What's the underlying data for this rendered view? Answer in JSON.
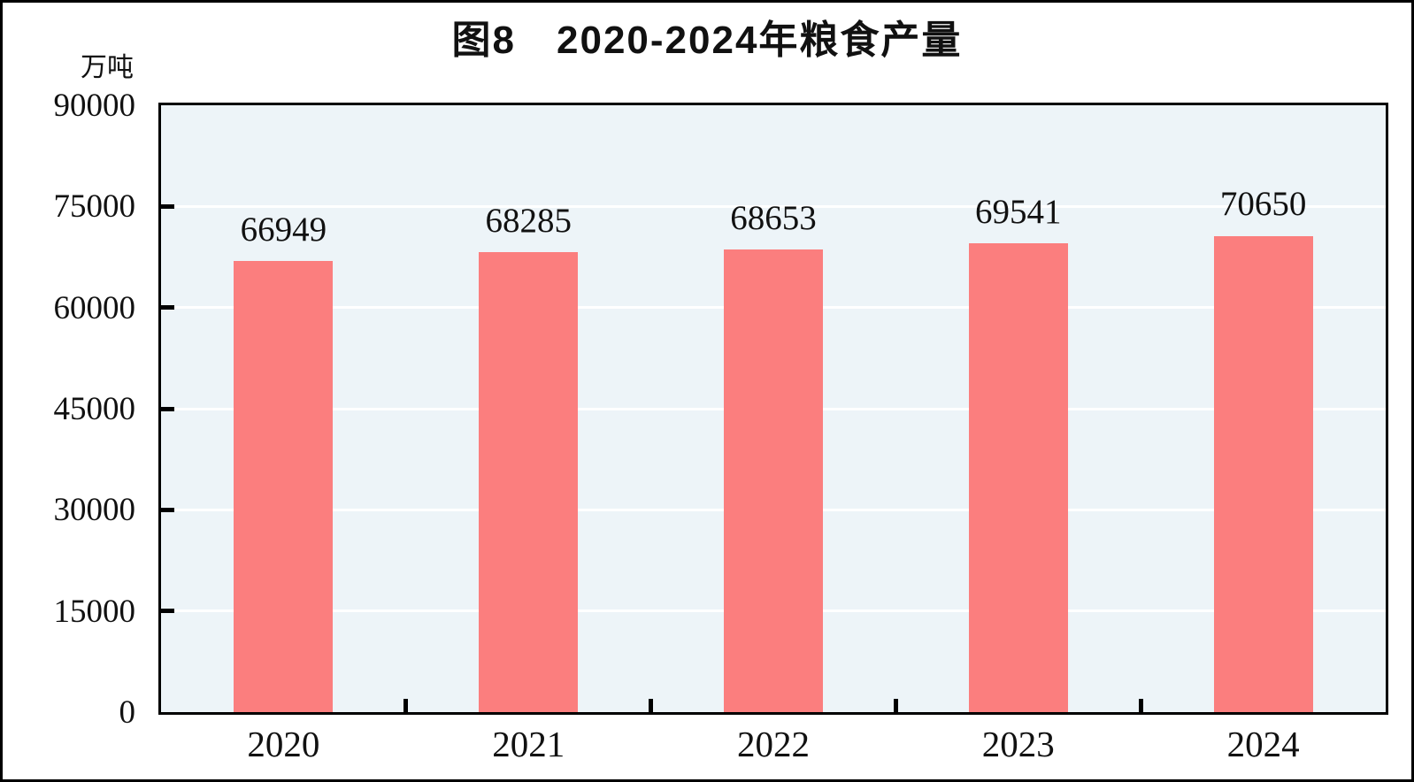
{
  "figure": {
    "title": "图8　2020-2024年粮食产量",
    "unit_label": "万吨"
  },
  "chart_data": {
    "type": "bar",
    "title": "图8 2020-2024年粮食产量",
    "ylabel": "万吨",
    "xlabel": "",
    "categories": [
      "2020",
      "2021",
      "2022",
      "2023",
      "2024"
    ],
    "values": [
      66949,
      68285,
      68653,
      69541,
      70650
    ],
    "data_labels": [
      66949,
      68285,
      68653,
      69541,
      70650
    ],
    "ylim": [
      0,
      90000
    ],
    "yticks": [
      0,
      15000,
      30000,
      45000,
      60000,
      75000,
      90000
    ],
    "grid": "horizontal-on",
    "legend": "none",
    "colors": {
      "bar": "#FB7E7E",
      "plot_background": "#EDF4F8",
      "gridline": "#FFFFFF",
      "axis": "#000000",
      "text": "#111111"
    }
  }
}
